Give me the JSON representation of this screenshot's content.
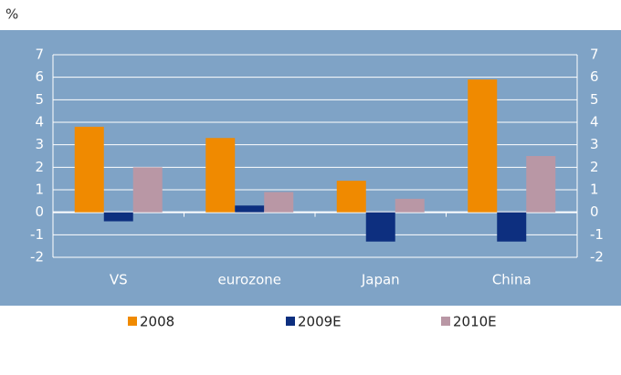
{
  "chart_data": {
    "type": "bar",
    "unit_label": "%",
    "categories": [
      "VS",
      "eurozone",
      "Japan",
      "China"
    ],
    "series": [
      {
        "name": "2008",
        "color": "#f08a00",
        "values": [
          3.8,
          3.3,
          1.4,
          5.9
        ]
      },
      {
        "name": "2009E",
        "color": "#0d2f7f",
        "values": [
          -0.4,
          0.3,
          -1.3,
          -1.3
        ]
      },
      {
        "name": "2010E",
        "color": "#b997a5",
        "values": [
          2.0,
          0.9,
          0.6,
          2.5
        ]
      }
    ],
    "ylim": [
      -2,
      7
    ],
    "yticks": [
      -2,
      -1,
      0,
      1,
      2,
      3,
      4,
      5,
      6,
      7
    ],
    "y2lim": [
      -2,
      7
    ],
    "y2ticks": [
      -2,
      -1,
      0,
      1,
      2,
      3,
      4,
      5,
      6,
      7
    ],
    "grid": true,
    "legend": "bottom"
  }
}
